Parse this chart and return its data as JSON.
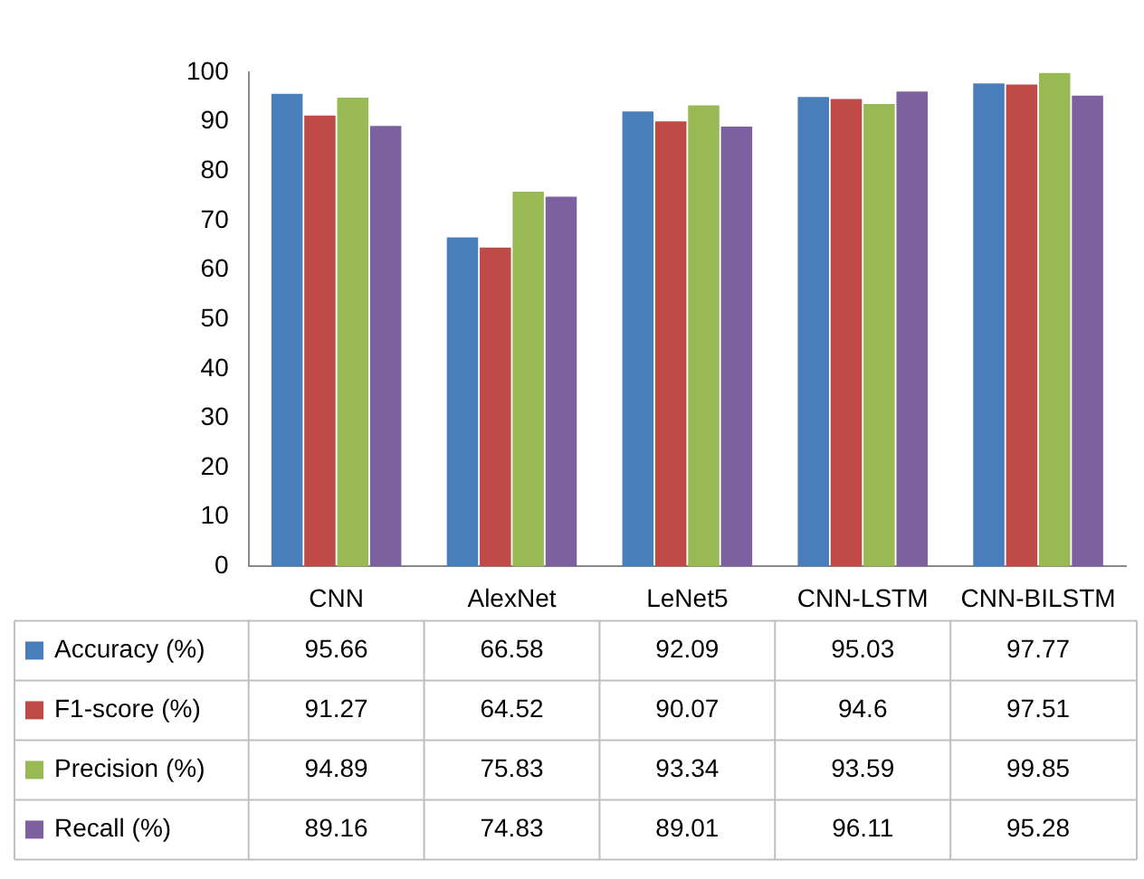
{
  "chart_data": {
    "type": "bar",
    "categories": [
      "CNN",
      "AlexNet",
      "LeNet5",
      "CNN-LSTM",
      "CNN-BILSTM"
    ],
    "series": [
      {
        "name": "Accuracy (%)",
        "color": "#4a7ebb",
        "values": [
          95.66,
          66.58,
          92.09,
          95.03,
          97.77
        ]
      },
      {
        "name": "F1-score (%)",
        "color": "#be4b48",
        "values": [
          91.27,
          64.52,
          90.07,
          94.6,
          97.51
        ]
      },
      {
        "name": "Precision (%)",
        "color": "#98b954",
        "values": [
          94.89,
          75.83,
          93.34,
          93.59,
          99.85
        ]
      },
      {
        "name": "Recall (%)",
        "color": "#7d60a0",
        "values": [
          89.16,
          74.83,
          89.01,
          96.11,
          95.28
        ]
      }
    ],
    "ylim": [
      0,
      100
    ],
    "yticks": [
      0,
      10,
      20,
      30,
      40,
      50,
      60,
      70,
      80,
      90,
      100
    ],
    "grid": false,
    "legend": "bottom",
    "data_labels": true
  }
}
